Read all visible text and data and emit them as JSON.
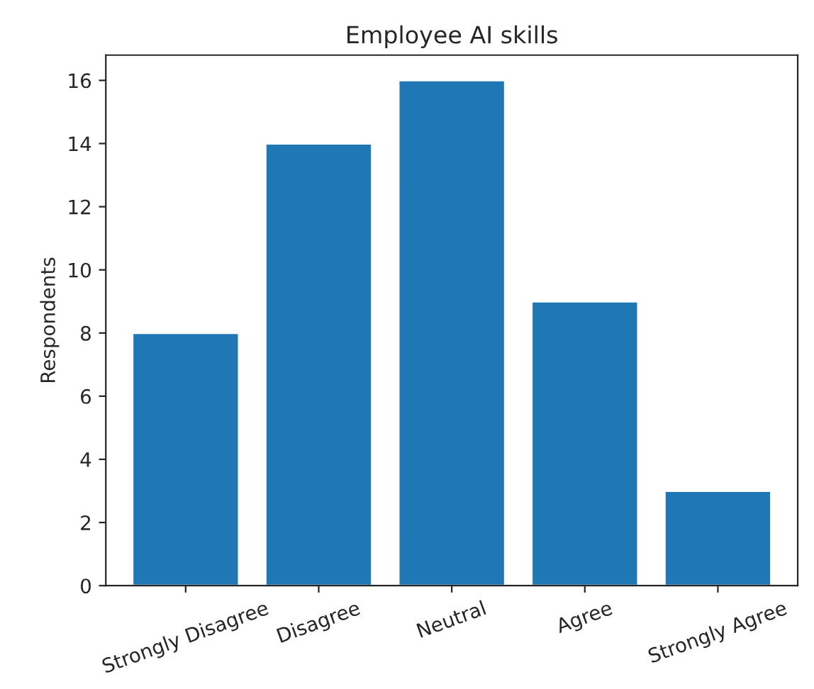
{
  "chart_data": {
    "type": "bar",
    "title": "Employee AI skills",
    "ylabel": "Respondents",
    "categories": [
      "Strongly Disagree",
      "Disagree",
      "Neutral",
      "Agree",
      "Strongly Agree"
    ],
    "values": [
      8,
      14,
      16,
      9,
      3
    ],
    "color": "#1f77b4",
    "ylim": [
      0,
      16.8
    ],
    "yticks": [
      0,
      2,
      4,
      6,
      8,
      10,
      12,
      14,
      16
    ],
    "grid": false,
    "legend": false
  }
}
